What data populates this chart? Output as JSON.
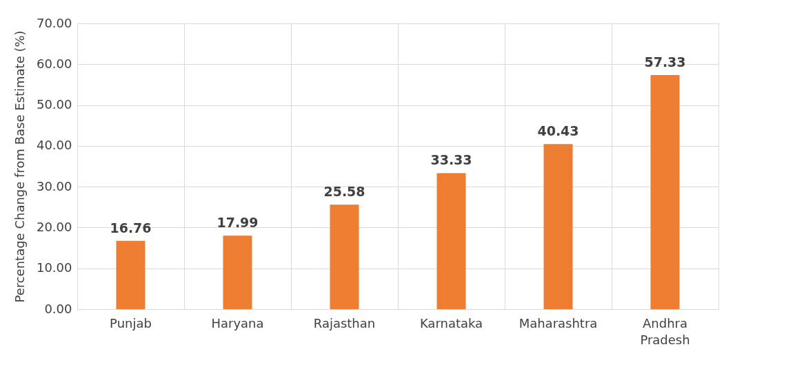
{
  "chart_data": {
    "type": "bar",
    "ylabel": "Percentage Change from Base Estimate (%)",
    "categories": [
      "Punjab",
      "Haryana",
      "Rajasthan",
      "Karnataka",
      "Maharashtra",
      "Andhra Pradesh"
    ],
    "values": [
      16.76,
      17.99,
      25.58,
      33.33,
      40.43,
      57.33
    ],
    "color": "#ed7d31",
    "data_labels": true,
    "grid": true,
    "ylim": [
      0,
      70
    ],
    "yticks": [
      {
        "value": 0,
        "label": "0.00"
      },
      {
        "value": 10,
        "label": "10.00"
      },
      {
        "value": 20,
        "label": "20.00"
      },
      {
        "value": 30,
        "label": "30.00"
      },
      {
        "value": 40,
        "label": "40.00"
      },
      {
        "value": 50,
        "label": "50.00"
      },
      {
        "value": 60,
        "label": "60.00"
      },
      {
        "value": 70,
        "label": "70.00"
      }
    ]
  }
}
